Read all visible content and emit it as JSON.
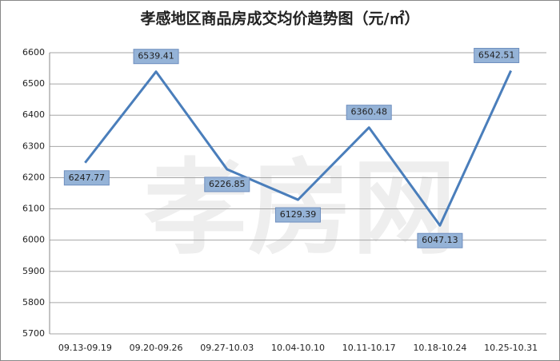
{
  "chart_data": {
    "type": "line",
    "title": "孝感地区商品房成交均价趋势图（元/㎡）",
    "watermark": "孝房网",
    "categories": [
      "09.13-09.19",
      "09.20-09.26",
      "09.27-10.03",
      "10.04-10.10",
      "10.11-10.17",
      "10.18-10.24",
      "10.25-10.31"
    ],
    "series": [
      {
        "color": "#4a7ebb",
        "values": [
          6247.77,
          6539.41,
          6226.85,
          6129.39,
          6360.48,
          6047.13,
          6542.51
        ]
      }
    ],
    "ylim": [
      5700,
      6600
    ],
    "yticks": [
      5700,
      5800,
      5900,
      6000,
      6100,
      6200,
      6300,
      6400,
      6500,
      6600
    ],
    "grid": true
  }
}
